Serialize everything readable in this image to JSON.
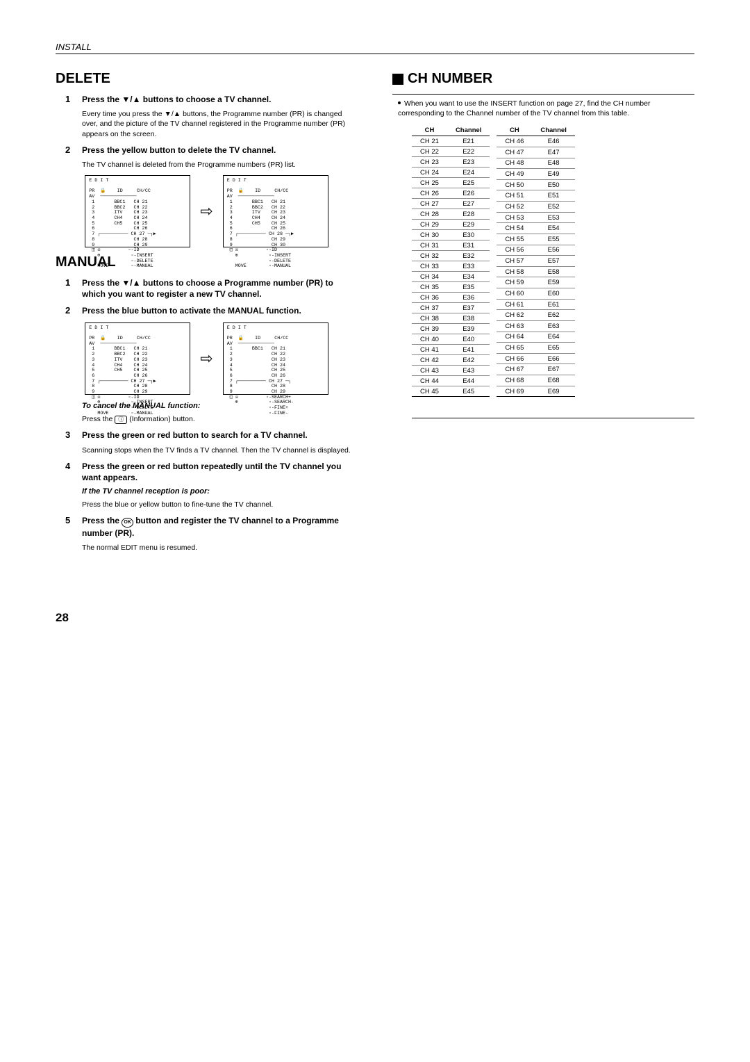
{
  "header": "INSTALL",
  "left": {
    "delete_h": "DELETE",
    "d_step1_title": "Press the ▼/▲ buttons to choose a TV channel.",
    "d_step1_text": "Every time you press the ▼/▲ buttons, the Programme number (PR) is changed over, and the picture of the TV channel registered in the Programme number (PR) appears on the screen.",
    "d_step2_title": "Press the yellow button to delete the TV channel.",
    "d_step2_text": "The TV channel is deleted from the Programme numbers (PR) list.",
    "editbox1": "E D I T\n\nPR  🔒    ID     CH/CC\nAV  ─────────────\n 1       BBC1   CH 21\n 2       BBC2   CH 22\n 3       ITV    CH 23\n 4       CH4    CH 24\n 5       CH5    CH 25\n 6              CH 26\n 7 ┌────────── CH 27 ─┐▶\n 8              CH 28\n 9              CH 29\n ◫ ☒          ▫-ID\n   ⊕           ▫-INSERT\n               ▫-DELETE\n   MOVE        ▫-MANUAL",
    "editbox2": "E D I T\n\nPR  🔒    ID     CH/CC\nAV  ─────────────\n 1       BBC1   CH 21\n 2       BBC2   CH 22\n 3       ITV    CH 23\n 4       CH4    CH 24\n 5       CH5    CH 25\n 6              CH 26\n 7 ┌────────── CH 28 ─┐▶\n 8              CH 29\n 9              CH 30\n ◫ ☒          ▫-ID\n   ⊕           ▫-INSERT\n               ▫-DELETE\n   MOVE        ▫-MANUAL",
    "manual_h": "MANUAL",
    "m_step1_title": "Press the ▼/▲ buttons to choose a Programme number (PR) to which you want to register a new TV channel.",
    "m_step2_title": "Press the blue button to activate the MANUAL function.",
    "editbox3": "E D I T\n\nPR  🔒    ID     CH/CC\nAV  ─────────────\n 1       BBC1   CH 21\n 2       BBC2   CH 22\n 3       ITV    CH 23\n 4       CH4    CH 24\n 5       CH5    CH 25\n 6              CH 26\n 7 ┌────────── CH 27 ─┐▶\n 8              CH 28\n 9              CH 29\n ◫ ☒          ▫-ID\n   ⊕           ▫-INSERT\n               ▫-DELETE\n   MOVE        ▫-MANUAL",
    "editbox4": "E D I T\n\nPR  🔒    ID     CH/CC\nAV  ─────────────\n 1       BBC1   CH 21\n 2              CH 22\n 3              CH 23\n 4              CH 24\n 5              CH 25\n 6              CH 26\n 7 ┌────────── CH 27 ─┐\n 8              CH 28\n 9              CH 29\n ◫ ☒          ▫-SEARCH+\n   ⊕           ▫-SEARCH-\n               ▫-FINE+\n               ▫-FINE-",
    "m_cancel_bi": "To cancel the MANUAL function:",
    "m_cancel_text_a": "Press the ",
    "m_cancel_btn": "ⓘ",
    "m_cancel_text_b": " (Information) button.",
    "m_step3_title": "Press the green or red button to search for a TV channel.",
    "m_step3_text": "Scanning stops when the TV finds a TV channel. Then the TV channel is displayed.",
    "m_step4_title": "Press the green or red button repeatedly until the TV channel you want appears.",
    "m_step4_bi": "If the TV channel reception is poor:",
    "m_step4_text": "Press the blue or yellow button to fine-tune the TV channel.",
    "m_step5_title_a": "Press the ",
    "m_step5_ok": "OK",
    "m_step5_title_b": " button and register the TV channel to a Programme number (PR).",
    "m_step5_text": "The normal EDIT menu is resumed."
  },
  "right": {
    "h": "CH NUMBER",
    "intro": "When you want to use the INSERT function on page 27, find the CH number corresponding to the Channel number of the TV channel from this table.",
    "th_ch": "CH",
    "th_channel": "Channel",
    "table1": [
      [
        "CH 21",
        "E21"
      ],
      [
        "CH 22",
        "E22"
      ],
      [
        "CH 23",
        "E23"
      ],
      [
        "CH 24",
        "E24"
      ],
      [
        "CH 25",
        "E25"
      ],
      [
        "CH 26",
        "E26"
      ],
      [
        "CH 27",
        "E27"
      ],
      [
        "CH 28",
        "E28"
      ],
      [
        "CH 29",
        "E29"
      ],
      [
        "CH 30",
        "E30"
      ],
      [
        "CH 31",
        "E31"
      ],
      [
        "CH 32",
        "E32"
      ],
      [
        "CH 33",
        "E33"
      ],
      [
        "CH 34",
        "E34"
      ],
      [
        "CH 35",
        "E35"
      ],
      [
        "CH 36",
        "E36"
      ],
      [
        "CH 37",
        "E37"
      ],
      [
        "CH 38",
        "E38"
      ],
      [
        "CH 39",
        "E39"
      ],
      [
        "CH 40",
        "E40"
      ],
      [
        "CH 41",
        "E41"
      ],
      [
        "CH 42",
        "E42"
      ],
      [
        "CH 43",
        "E43"
      ],
      [
        "CH 44",
        "E44"
      ],
      [
        "CH 45",
        "E45"
      ]
    ],
    "table2": [
      [
        "CH 46",
        "E46"
      ],
      [
        "CH 47",
        "E47"
      ],
      [
        "CH 48",
        "E48"
      ],
      [
        "CH 49",
        "E49"
      ],
      [
        "CH 50",
        "E50"
      ],
      [
        "CH 51",
        "E51"
      ],
      [
        "CH 52",
        "E52"
      ],
      [
        "CH 53",
        "E53"
      ],
      [
        "CH 54",
        "E54"
      ],
      [
        "CH 55",
        "E55"
      ],
      [
        "CH 56",
        "E56"
      ],
      [
        "CH 57",
        "E57"
      ],
      [
        "CH 58",
        "E58"
      ],
      [
        "CH 59",
        "E59"
      ],
      [
        "CH 60",
        "E60"
      ],
      [
        "CH 61",
        "E61"
      ],
      [
        "CH 62",
        "E62"
      ],
      [
        "CH 63",
        "E63"
      ],
      [
        "CH 64",
        "E64"
      ],
      [
        "CH 65",
        "E65"
      ],
      [
        "CH 66",
        "E66"
      ],
      [
        "CH 67",
        "E67"
      ],
      [
        "CH 68",
        "E68"
      ],
      [
        "CH 69",
        "E69"
      ]
    ]
  },
  "pagenum": "28"
}
